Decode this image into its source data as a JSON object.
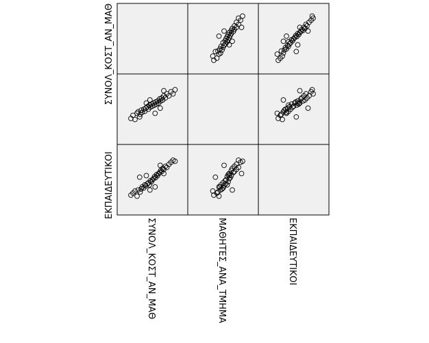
{
  "chart_data": {
    "type": "scatter",
    "variables": [
      "ΣΥΝΟΛ_ΚΟΣΤ_ΑΝ_ΜΑΘ",
      "ΜΑΘΗΤΕΣ_ΑΝΑ_ΤΜΗΜΑ",
      "ΕΚΠΑΙΔΕΥΤΙΚΟΙ"
    ],
    "row_labels": [
      "ΣΥΝΟΛ_ΚΟΣΤ_ΑΝ_ΜΑΘ",
      "",
      "ΕΚΠΑΙΔΕΥΤΙΚΟΙ"
    ],
    "col_labels": [
      "ΣΥΝΟΛ_ΚΟΣΤ_ΑΝ_ΜΑΘ",
      "ΜΑΘΗΤΕΣ_ΑΝΑ_ΤΜΗΜΑ",
      "ΕΚΠΑΙΔΕΥΤΙΚΟΙ"
    ],
    "grid": false,
    "background_color": "#f0f0f0",
    "marker": "open-circle",
    "points": [
      [
        0.08,
        0.32,
        0.2
      ],
      [
        0.12,
        0.38,
        0.24
      ],
      [
        0.16,
        0.3,
        0.28
      ],
      [
        0.2,
        0.42,
        0.18
      ],
      [
        0.22,
        0.45,
        0.3
      ],
      [
        0.26,
        0.4,
        0.26
      ],
      [
        0.28,
        0.48,
        0.32
      ],
      [
        0.3,
        0.44,
        0.36
      ],
      [
        0.33,
        0.5,
        0.34
      ],
      [
        0.35,
        0.46,
        0.4
      ],
      [
        0.37,
        0.52,
        0.38
      ],
      [
        0.4,
        0.55,
        0.42
      ],
      [
        0.42,
        0.5,
        0.44
      ],
      [
        0.44,
        0.58,
        0.4
      ],
      [
        0.46,
        0.54,
        0.48
      ],
      [
        0.48,
        0.6,
        0.46
      ],
      [
        0.5,
        0.56,
        0.5
      ],
      [
        0.52,
        0.62,
        0.52
      ],
      [
        0.54,
        0.58,
        0.56
      ],
      [
        0.56,
        0.64,
        0.54
      ],
      [
        0.58,
        0.6,
        0.6
      ],
      [
        0.6,
        0.66,
        0.58
      ],
      [
        0.62,
        0.62,
        0.62
      ],
      [
        0.64,
        0.7,
        0.64
      ],
      [
        0.66,
        0.66,
        0.68
      ],
      [
        0.68,
        0.72,
        0.66
      ],
      [
        0.7,
        0.68,
        0.72
      ],
      [
        0.72,
        0.76,
        0.7
      ],
      [
        0.75,
        0.72,
        0.76
      ],
      [
        0.78,
        0.8,
        0.74
      ],
      [
        0.82,
        0.76,
        0.8
      ],
      [
        0.86,
        0.84,
        0.84
      ],
      [
        0.9,
        0.8,
        0.88
      ],
      [
        0.94,
        0.88,
        0.86
      ],
      [
        0.25,
        0.35,
        0.55
      ],
      [
        0.45,
        0.68,
        0.3
      ],
      [
        0.65,
        0.52,
        0.78
      ],
      [
        0.38,
        0.62,
        0.58
      ],
      [
        0.55,
        0.42,
        0.36
      ],
      [
        0.72,
        0.86,
        0.62
      ]
    ]
  }
}
